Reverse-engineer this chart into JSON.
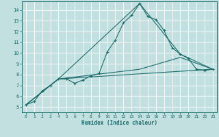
{
  "xlabel": "Humidex (Indice chaleur)",
  "bg_color": "#c2e0e0",
  "line_color": "#1a6b6b",
  "xlim": [
    -0.5,
    23.5
  ],
  "ylim": [
    4.5,
    14.8
  ],
  "xticks": [
    0,
    1,
    2,
    3,
    4,
    5,
    6,
    7,
    8,
    9,
    10,
    11,
    12,
    13,
    14,
    15,
    16,
    17,
    18,
    19,
    20,
    21,
    22,
    23
  ],
  "yticks": [
    5,
    6,
    7,
    8,
    9,
    10,
    11,
    12,
    13,
    14
  ],
  "lines": [
    {
      "x": [
        0,
        1,
        2,
        3,
        4,
        5,
        6,
        7,
        8,
        9,
        10,
        11,
        12,
        13,
        14,
        15,
        16,
        17,
        18,
        19,
        20,
        21,
        22,
        23
      ],
      "y": [
        5.2,
        5.5,
        6.5,
        7.0,
        7.6,
        7.6,
        7.2,
        7.5,
        7.9,
        8.1,
        10.1,
        11.2,
        12.8,
        13.5,
        14.6,
        13.4,
        13.1,
        12.1,
        10.5,
        9.9,
        9.5,
        8.5,
        8.4,
        8.5
      ],
      "marker": true
    },
    {
      "x": [
        0,
        4,
        14,
        19,
        23
      ],
      "y": [
        5.2,
        7.6,
        14.6,
        9.9,
        8.5
      ],
      "marker": false
    },
    {
      "x": [
        0,
        4,
        14,
        19,
        23
      ],
      "y": [
        5.2,
        7.6,
        8.5,
        9.6,
        8.5
      ],
      "marker": false
    },
    {
      "x": [
        0,
        4,
        23
      ],
      "y": [
        5.2,
        7.6,
        8.5
      ],
      "marker": false
    }
  ]
}
